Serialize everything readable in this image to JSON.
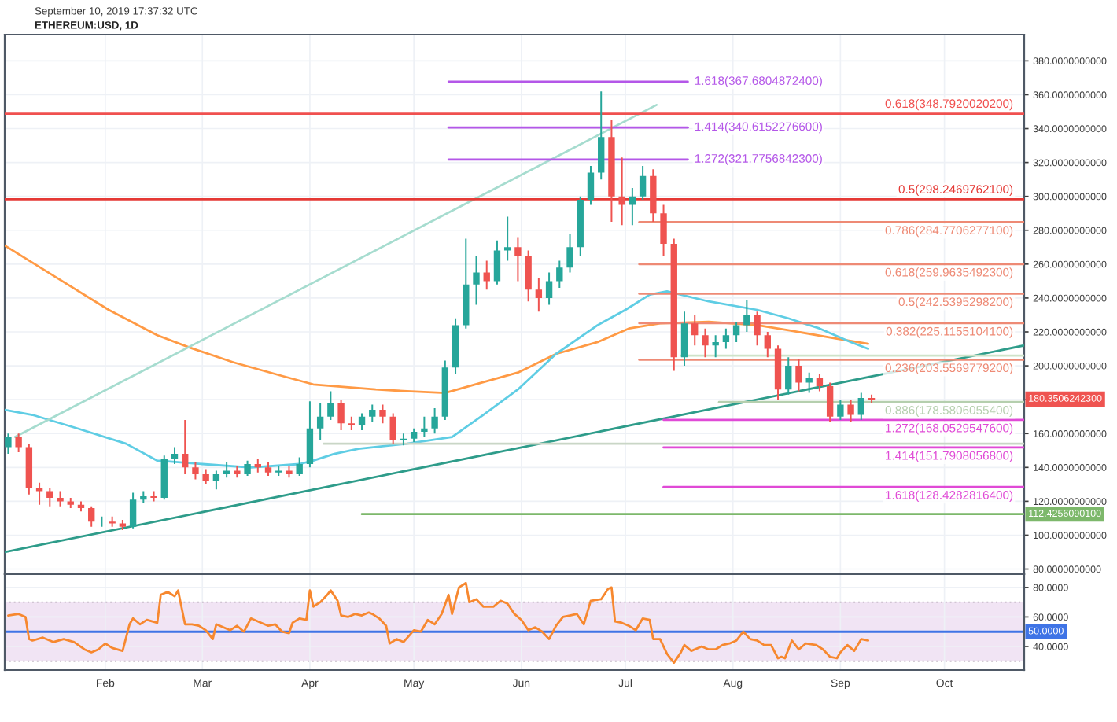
{
  "chart_data": [
    {
      "type": "candlestick",
      "title": "September 10, 2019 17:37:32 UTC",
      "subtitle": "ETHEREUM:USD, 1D",
      "x": [
        "2019-01-04",
        "2019-01-07",
        "2019-01-10",
        "2019-01-13",
        "2019-01-16",
        "2019-01-19",
        "2019-01-22",
        "2019-01-25",
        "2019-01-28",
        "2019-01-31",
        "2019-02-03",
        "2019-02-06",
        "2019-02-09",
        "2019-02-12",
        "2019-02-15",
        "2019-02-18",
        "2019-02-21",
        "2019-02-24",
        "2019-02-27",
        "2019-03-02",
        "2019-03-05",
        "2019-03-08",
        "2019-03-11",
        "2019-03-14",
        "2019-03-17",
        "2019-03-20",
        "2019-03-23",
        "2019-03-26",
        "2019-03-29",
        "2019-04-01",
        "2019-04-04",
        "2019-04-07",
        "2019-04-10",
        "2019-04-13",
        "2019-04-16",
        "2019-04-19",
        "2019-04-22",
        "2019-04-25",
        "2019-04-28",
        "2019-05-01",
        "2019-05-04",
        "2019-05-07",
        "2019-05-10",
        "2019-05-13",
        "2019-05-16",
        "2019-05-19",
        "2019-05-22",
        "2019-05-25",
        "2019-05-28",
        "2019-05-31",
        "2019-06-03",
        "2019-06-06",
        "2019-06-09",
        "2019-06-12",
        "2019-06-15",
        "2019-06-18",
        "2019-06-21",
        "2019-06-24",
        "2019-06-27",
        "2019-06-30",
        "2019-07-03",
        "2019-07-06",
        "2019-07-09",
        "2019-07-12",
        "2019-07-15",
        "2019-07-18",
        "2019-07-21",
        "2019-07-24",
        "2019-07-27",
        "2019-07-30",
        "2019-08-02",
        "2019-08-05",
        "2019-08-08",
        "2019-08-11",
        "2019-08-14",
        "2019-08-17",
        "2019-08-20",
        "2019-08-23",
        "2019-08-26",
        "2019-08-29",
        "2019-09-01",
        "2019-09-04",
        "2019-09-07",
        "2019-09-10"
      ],
      "ohlc": [
        [
          152,
          160,
          148,
          158
        ],
        [
          158,
          160,
          149,
          152
        ],
        [
          152,
          154,
          124,
          128
        ],
        [
          128,
          131,
          118,
          126
        ],
        [
          126,
          128,
          117,
          122
        ],
        [
          122,
          126,
          117,
          120
        ],
        [
          120,
          122,
          116,
          118
        ],
        [
          118,
          120,
          114,
          116
        ],
        [
          116,
          117,
          105,
          108
        ],
        [
          108,
          111,
          105,
          108
        ],
        [
          108,
          111,
          105,
          107
        ],
        [
          107,
          109,
          103,
          105
        ],
        [
          105,
          125,
          104,
          121
        ],
        [
          121,
          126,
          119,
          123
        ],
        [
          123,
          126,
          120,
          122
        ],
        [
          122,
          147,
          121,
          145
        ],
        [
          145,
          152,
          142,
          148
        ],
        [
          148,
          168,
          136,
          140
        ],
        [
          140,
          143,
          133,
          136
        ],
        [
          136,
          139,
          130,
          132
        ],
        [
          132,
          138,
          127,
          136
        ],
        [
          136,
          143,
          134,
          138
        ],
        [
          138,
          141,
          134,
          136
        ],
        [
          136,
          144,
          135,
          142
        ],
        [
          142,
          145,
          137,
          140
        ],
        [
          140,
          143,
          135,
          137
        ],
        [
          137,
          141,
          135,
          138
        ],
        [
          138,
          141,
          134,
          136
        ],
        [
          136,
          146,
          135,
          142
        ],
        [
          142,
          179,
          140,
          163
        ],
        [
          163,
          178,
          156,
          170
        ],
        [
          170,
          185,
          168,
          178
        ],
        [
          178,
          180,
          162,
          166
        ],
        [
          166,
          170,
          162,
          165
        ],
        [
          165,
          172,
          162,
          170
        ],
        [
          170,
          177,
          167,
          174
        ],
        [
          174,
          177,
          166,
          170
        ],
        [
          170,
          172,
          154,
          156
        ],
        [
          156,
          160,
          153,
          157
        ],
        [
          157,
          163,
          155,
          161
        ],
        [
          161,
          170,
          158,
          163
        ],
        [
          163,
          175,
          160,
          170
        ],
        [
          170,
          203,
          168,
          199
        ],
        [
          199,
          228,
          195,
          224
        ],
        [
          224,
          275,
          222,
          248
        ],
        [
          248,
          265,
          236,
          255
        ],
        [
          255,
          262,
          245,
          250
        ],
        [
          250,
          274,
          248,
          268
        ],
        [
          268,
          288,
          262,
          270
        ],
        [
          270,
          276,
          250,
          265
        ],
        [
          265,
          268,
          238,
          245
        ],
        [
          245,
          252,
          232,
          240
        ],
        [
          240,
          255,
          236,
          250
        ],
        [
          250,
          262,
          246,
          258
        ],
        [
          258,
          278,
          255,
          270
        ],
        [
          270,
          300,
          265,
          298
        ],
        [
          298,
          318,
          295,
          314
        ],
        [
          314,
          362,
          310,
          335
        ],
        [
          335,
          345,
          285,
          300
        ],
        [
          300,
          323,
          283,
          295
        ],
        [
          295,
          305,
          283,
          300
        ],
        [
          300,
          318,
          298,
          312
        ],
        [
          312,
          316,
          285,
          290
        ],
        [
          290,
          295,
          265,
          272
        ],
        [
          272,
          275,
          197,
          205
        ],
        [
          205,
          232,
          200,
          225
        ],
        [
          225,
          230,
          212,
          218
        ],
        [
          218,
          222,
          205,
          212
        ],
        [
          212,
          218,
          205,
          214
        ],
        [
          214,
          222,
          210,
          218
        ],
        [
          218,
          226,
          214,
          224
        ],
        [
          224,
          239,
          220,
          230
        ],
        [
          230,
          232,
          212,
          218
        ],
        [
          218,
          220,
          205,
          210
        ],
        [
          210,
          212,
          180,
          186
        ],
        [
          186,
          205,
          183,
          200
        ],
        [
          200,
          204,
          185,
          190
        ],
        [
          190,
          196,
          184,
          193
        ],
        [
          193,
          195,
          185,
          188
        ],
        [
          188,
          190,
          167,
          170
        ],
        [
          170,
          180,
          168,
          177
        ],
        [
          177,
          180,
          167,
          171
        ],
        [
          171,
          184,
          168,
          181
        ],
        [
          181,
          183,
          178,
          180
        ]
      ],
      "series": [
        {
          "type": "line",
          "color": "#ff9a45",
          "x": [
            "2019-01-03",
            "2019-01-18",
            "2019-02-02",
            "2019-02-16",
            "2019-02-25",
            "2019-03-10",
            "2019-03-24",
            "2019-04-02",
            "2019-04-20",
            "2019-04-29",
            "2019-05-10",
            "2019-05-17",
            "2019-05-31",
            "2019-06-11",
            "2019-06-23",
            "2019-07-02",
            "2019-07-11",
            "2019-07-25",
            "2019-08-08",
            "2019-08-17",
            "2019-08-31",
            "2019-09-09"
          ],
          "values": [
            271,
            252,
            233,
            218,
            211,
            202,
            194,
            189,
            186,
            185,
            184,
            188,
            196,
            207,
            214,
            222,
            225,
            226,
            224,
            221,
            216,
            213
          ]
        },
        {
          "type": "line",
          "color": "#5fcde4",
          "x": [
            "2019-01-03",
            "2019-01-11",
            "2019-01-24",
            "2019-02-07",
            "2019-02-16",
            "2019-03-01",
            "2019-03-15",
            "2019-03-29",
            "2019-04-02",
            "2019-04-08",
            "2019-04-15",
            "2019-04-29",
            "2019-05-12",
            "2019-05-21",
            "2019-05-31",
            "2019-06-11",
            "2019-06-23",
            "2019-07-01",
            "2019-07-08",
            "2019-07-13",
            "2019-07-25",
            "2019-08-08",
            "2019-08-17",
            "2019-08-26",
            "2019-09-04",
            "2019-09-09"
          ],
          "values": [
            174,
            171,
            163,
            154,
            144,
            142,
            140,
            142,
            144,
            148,
            151,
            154,
            158,
            171,
            186,
            207,
            224,
            233,
            242,
            244,
            238,
            233,
            228,
            222,
            214,
            210
          ]
        },
        {
          "type": "line",
          "color": "#2e9c8a",
          "x": [
            "2019-01-03",
            "2019-10-24"
          ],
          "values": [
            90,
            212
          ]
        },
        {
          "type": "line",
          "color": "#a6dccf",
          "x": [
            "2019-01-06",
            "2019-07-10"
          ],
          "values": [
            158,
            354
          ]
        },
        {
          "type": "line",
          "name": "1.618(367.6804872400)",
          "color": "#b457e8",
          "x": [
            "2019-05-11",
            "2019-07-19"
          ],
          "values": [
            367.68048724,
            367.68048724
          ]
        },
        {
          "type": "line",
          "name": "1.414(340.6152276600)",
          "color": "#b457e8",
          "x": [
            "2019-05-11",
            "2019-07-19"
          ],
          "values": [
            340.61522766,
            340.61522766
          ]
        },
        {
          "type": "line",
          "name": "1.272(321.7756842300)",
          "color": "#b457e8",
          "x": [
            "2019-05-11",
            "2019-07-19"
          ],
          "values": [
            321.77568423,
            321.77568423
          ]
        },
        {
          "type": "line",
          "name": "0.618(348.7920020200)",
          "color": "#f0504f",
          "x": [
            "2019-01-03",
            "2019-10-24"
          ],
          "values": [
            348.79200202,
            348.79200202
          ]
        },
        {
          "type": "line",
          "name": "0.5(298.2469762100)",
          "color": "#e53935",
          "x": [
            "2019-01-03",
            "2019-10-24"
          ],
          "values": [
            298.24697621,
            298.24697621
          ]
        },
        {
          "type": "line",
          "name": "0.786(284.7706277100)",
          "color": "#ee8a75",
          "x": [
            "2019-07-05",
            "2019-10-24"
          ],
          "values": [
            284.77062771,
            284.77062771
          ]
        },
        {
          "type": "line",
          "name": "0.618(259.9635492300)",
          "color": "#ee8a75",
          "x": [
            "2019-07-05",
            "2019-10-24"
          ],
          "values": [
            259.96354923,
            259.96354923
          ]
        },
        {
          "type": "line",
          "name": "0.5(242.5395298200)",
          "color": "#ee8a75",
          "x": [
            "2019-07-05",
            "2019-10-24"
          ],
          "values": [
            242.53952982,
            242.53952982
          ]
        },
        {
          "type": "line",
          "name": "0.382(225.1155104100)",
          "color": "#ee8a75",
          "x": [
            "2019-07-05",
            "2019-10-24"
          ],
          "values": [
            225.11551041,
            225.11551041
          ]
        },
        {
          "type": "line",
          "name": "0.236(203.5569779200)",
          "color": "#ee8a75",
          "x": [
            "2019-07-05",
            "2019-10-24"
          ],
          "values": [
            203.55697792,
            203.55697792
          ]
        },
        {
          "type": "line",
          "color": "#cfe3c9",
          "x": [
            "2019-07-17",
            "2019-10-24"
          ],
          "values": [
            206,
            206
          ]
        },
        {
          "type": "line",
          "name": "0.886(178.5806055400)",
          "color": "#b5cfae",
          "x": [
            "2019-07-28",
            "2019-10-24"
          ],
          "values": [
            178.58060554,
            178.58060554
          ]
        },
        {
          "type": "line",
          "name": "1.272(168.0529547600)",
          "color": "#e04ad6",
          "x": [
            "2019-07-12",
            "2019-10-24"
          ],
          "values": [
            168.05295476,
            168.05295476
          ]
        },
        {
          "type": "line",
          "name": "1.414(151.7908056800)",
          "color": "#e04ad6",
          "x": [
            "2019-07-12",
            "2019-10-24"
          ],
          "values": [
            151.79080568,
            151.79080568
          ]
        },
        {
          "type": "line",
          "name": "1.618(128.4282816400)",
          "color": "#e04ad6",
          "x": [
            "2019-07-12",
            "2019-10-24"
          ],
          "values": [
            128.42828164,
            128.42828164
          ]
        },
        {
          "type": "line",
          "color": "#c9d6c6",
          "x": [
            "2019-04-05",
            "2019-10-24"
          ],
          "values": [
            154,
            154
          ]
        },
        {
          "type": "line",
          "color": "#7db86b",
          "x": [
            "2019-04-16",
            "2019-10-24"
          ],
          "values": [
            112.42560901,
            112.42560901
          ]
        }
      ],
      "annotations": [
        {
          "text": "180.3506242300",
          "x": "2019-10-24",
          "y": 180.35062423
        },
        {
          "text": "112.4256090100",
          "x": "2019-10-24",
          "y": 112.42560901
        }
      ],
      "xlim": [
        "2019-01-03",
        "2019-10-24"
      ],
      "xticks": [
        {
          "value": "2019-02-01",
          "label": null
        },
        {
          "value": "2019-03-01",
          "label": null
        },
        {
          "value": "2019-04-01",
          "label": null
        },
        {
          "value": "2019-05-01",
          "label": null
        },
        {
          "value": "2019-06-01",
          "label": null
        },
        {
          "value": "2019-07-01",
          "label": null
        },
        {
          "value": "2019-08-01",
          "label": null
        },
        {
          "value": "2019-09-01",
          "label": null
        },
        {
          "value": "2019-10-01",
          "label": null
        }
      ],
      "ylim": [
        77,
        395.5
      ],
      "yticks": [
        {
          "value": 80,
          "label": "80.0000000000"
        },
        {
          "value": 100,
          "label": "100.0000000000"
        },
        {
          "value": 120,
          "label": "120.0000000000"
        },
        {
          "value": 140,
          "label": "140.0000000000"
        },
        {
          "value": 160,
          "label": "160.0000000000"
        },
        {
          "value": 180,
          "label": null
        },
        {
          "value": 200,
          "label": "200.0000000000"
        },
        {
          "value": 220,
          "label": "220.0000000000"
        },
        {
          "value": 240,
          "label": "240.0000000000"
        },
        {
          "value": 260,
          "label": "260.0000000000"
        },
        {
          "value": 280,
          "label": "280.0000000000"
        },
        {
          "value": 300,
          "label": "300.0000000000"
        },
        {
          "value": 320,
          "label": "320.0000000000"
        },
        {
          "value": 340,
          "label": "340.0000000000"
        },
        {
          "value": 360,
          "label": "360.0000000000"
        },
        {
          "value": 380,
          "label": "380.0000000000"
        }
      ],
      "grid": true,
      "tick_labels": "y"
    },
    {
      "type": "line",
      "x": [
        "2019-01-04",
        "2019-01-07",
        "2019-01-09",
        "2019-01-10",
        "2019-01-11",
        "2019-01-14",
        "2019-01-17",
        "2019-01-20",
        "2019-01-23",
        "2019-01-26",
        "2019-01-28",
        "2019-01-30",
        "2019-02-01",
        "2019-02-03",
        "2019-02-06",
        "2019-02-08",
        "2019-02-09",
        "2019-02-11",
        "2019-02-13",
        "2019-02-16",
        "2019-02-17",
        "2019-02-19",
        "2019-02-21",
        "2019-02-22",
        "2019-02-24",
        "2019-02-26",
        "2019-02-28",
        "2019-03-02",
        "2019-03-04",
        "2019-03-05",
        "2019-03-07",
        "2019-03-09",
        "2019-03-11",
        "2019-03-13",
        "2019-03-15",
        "2019-03-18",
        "2019-03-20",
        "2019-03-22",
        "2019-03-24",
        "2019-03-26",
        "2019-03-27",
        "2019-03-29",
        "2019-03-31",
        "2019-04-01",
        "2019-04-02",
        "2019-04-04",
        "2019-04-06",
        "2019-04-07",
        "2019-04-09",
        "2019-04-10",
        "2019-04-12",
        "2019-04-14",
        "2019-04-16",
        "2019-04-18",
        "2019-04-19",
        "2019-04-21",
        "2019-04-23",
        "2019-04-24",
        "2019-04-26",
        "2019-04-28",
        "2019-05-01",
        "2019-05-03",
        "2019-05-05",
        "2019-05-07",
        "2019-05-09",
        "2019-05-11",
        "2019-05-12",
        "2019-05-14",
        "2019-05-16",
        "2019-05-17",
        "2019-05-19",
        "2019-05-21",
        "2019-05-24",
        "2019-05-26",
        "2019-05-28",
        "2019-05-30",
        "2019-06-01",
        "2019-06-03",
        "2019-06-05",
        "2019-06-07",
        "2019-06-09",
        "2019-06-11",
        "2019-06-13",
        "2019-06-15",
        "2019-06-17",
        "2019-06-19",
        "2019-06-21",
        "2019-06-24",
        "2019-06-26",
        "2019-06-27",
        "2019-06-28",
        "2019-06-30",
        "2019-07-02",
        "2019-07-04",
        "2019-07-06",
        "2019-07-08",
        "2019-07-09",
        "2019-07-11",
        "2019-07-13",
        "2019-07-15",
        "2019-07-17",
        "2019-07-18",
        "2019-07-20",
        "2019-07-23",
        "2019-07-25",
        "2019-07-27",
        "2019-07-29",
        "2019-07-31",
        "2019-08-02",
        "2019-08-04",
        "2019-08-06",
        "2019-08-08",
        "2019-08-10",
        "2019-08-12",
        "2019-08-14",
        "2019-08-15",
        "2019-08-16",
        "2019-08-18",
        "2019-08-20",
        "2019-08-22",
        "2019-08-25",
        "2019-08-27",
        "2019-08-29",
        "2019-08-31",
        "2019-09-01",
        "2019-09-03",
        "2019-09-05",
        "2019-09-07",
        "2019-09-09"
      ],
      "series": [
        {
          "color": "#f7882f",
          "values": [
            61,
            62,
            60,
            45,
            44,
            46,
            43,
            45,
            43,
            38,
            36,
            38,
            42,
            39,
            37,
            55,
            59,
            55,
            58,
            56,
            75,
            77,
            74,
            78,
            55,
            55,
            54,
            51,
            45,
            55,
            53,
            51,
            54,
            50,
            59,
            56,
            54,
            55,
            50,
            49,
            56,
            59,
            58,
            78,
            67,
            70,
            75,
            78,
            71,
            61,
            60,
            62,
            61,
            63,
            62,
            59,
            54,
            42,
            45,
            43,
            51,
            50,
            58,
            55,
            62,
            75,
            62,
            80,
            83,
            70,
            72,
            67,
            67,
            71,
            69,
            62,
            58,
            51,
            53,
            50,
            45,
            54,
            60,
            61,
            62,
            55,
            71,
            72,
            79,
            80,
            57,
            56,
            54,
            51,
            59,
            58,
            45,
            45,
            35,
            29,
            36,
            41,
            37,
            40,
            38,
            38,
            41,
            42,
            44,
            50,
            45,
            44,
            41,
            41,
            32,
            33,
            32,
            44,
            38,
            42,
            41,
            38,
            33,
            32,
            36,
            41,
            37,
            45,
            44
          ]
        }
      ],
      "xlim": [
        "2019-01-03",
        "2019-10-24"
      ],
      "xticks": [
        {
          "value": "2019-02-01",
          "label": "Feb"
        },
        {
          "value": "2019-03-01",
          "label": "Mar"
        },
        {
          "value": "2019-04-01",
          "label": "Apr"
        },
        {
          "value": "2019-05-01",
          "label": "May"
        },
        {
          "value": "2019-06-01",
          "label": "Jun"
        },
        {
          "value": "2019-07-01",
          "label": "Jul"
        },
        {
          "value": "2019-08-01",
          "label": "Aug"
        },
        {
          "value": "2019-09-01",
          "label": "Sep"
        },
        {
          "value": "2019-10-01",
          "label": "Oct"
        }
      ],
      "ylim": [
        24,
        89
      ],
      "yticks": [
        {
          "value": 40,
          "label": "40.0000"
        },
        {
          "value": 60,
          "label": "60.0000"
        },
        {
          "value": 80,
          "label": "80.0000"
        }
      ],
      "ref_lines": [
        {
          "axis": "y",
          "value": 50,
          "label": "50.0000",
          "color": "#3f74e6"
        },
        {
          "axis": "y",
          "value": 70,
          "color": "#c6bbc8",
          "line_style": "dotted"
        },
        {
          "axis": "y",
          "value": 30,
          "color": "#c6bbc8",
          "line_style": "dotted"
        }
      ],
      "bands": [
        {
          "axis": "y",
          "from": 30,
          "to": 70,
          "color": "#f1e4f4"
        }
      ],
      "grid": true
    }
  ]
}
